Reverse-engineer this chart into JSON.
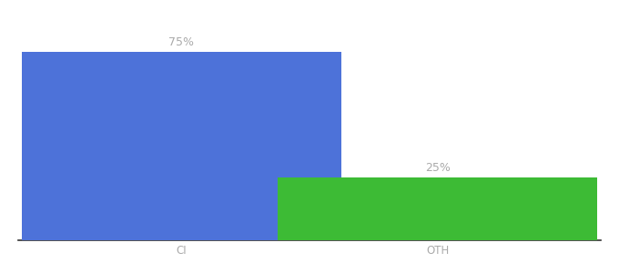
{
  "categories": [
    "CI",
    "OTH"
  ],
  "values": [
    75,
    25
  ],
  "bar_colors": [
    "#4d72d9",
    "#3dbb35"
  ],
  "label_format": "{}%",
  "background_color": "#ffffff",
  "ylim": [
    0,
    88
  ],
  "bar_width": 0.55,
  "label_color": "#aaaaaa",
  "label_fontsize": 9,
  "tick_fontsize": 8.5,
  "tick_color": "#aaaaaa",
  "spine_color": "#333333",
  "x_positions": [
    0.28,
    0.72
  ]
}
